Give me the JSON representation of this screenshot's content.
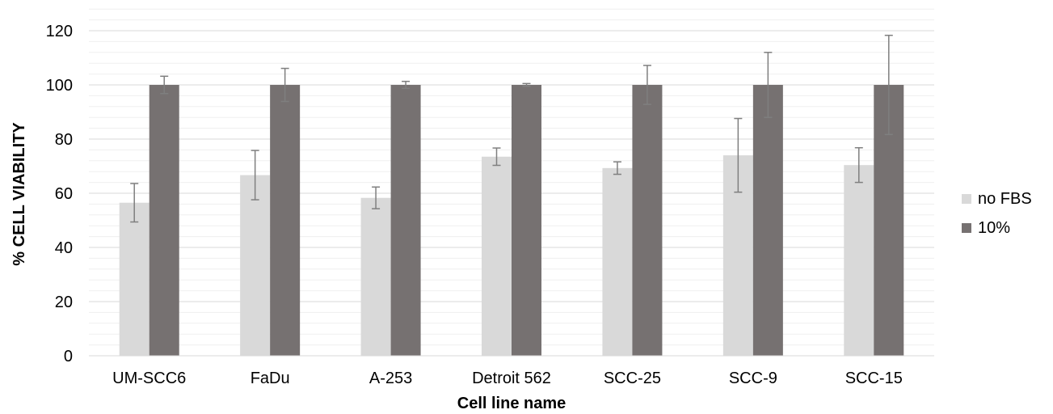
{
  "chart_data": {
    "type": "bar",
    "title": "",
    "xlabel": "Cell line name",
    "ylabel": "% CELL VIABILITY",
    "ylim": [
      0,
      120
    ],
    "yticks": [
      0,
      20,
      40,
      60,
      80,
      100,
      120
    ],
    "minor_gridlines": true,
    "legend_position": "right",
    "categories": [
      "UM-SCC6",
      "FaDu",
      "A-253",
      "Detroit 562",
      "SCC-25",
      "SCC-9",
      "SCC-15"
    ],
    "series": [
      {
        "name": "no FBS",
        "color": "#d9d9d9",
        "values": [
          56.5,
          66.7,
          58.3,
          73.5,
          69.3,
          74.0,
          70.4
        ],
        "error": [
          7.1,
          9.1,
          4.0,
          3.2,
          2.3,
          13.6,
          6.4
        ]
      },
      {
        "name": "10%",
        "color": "#767171",
        "values": [
          100,
          100,
          100,
          100,
          100,
          100,
          100
        ],
        "error": [
          3.2,
          6.1,
          1.3,
          0.5,
          7.2,
          12.0,
          18.3
        ]
      }
    ]
  }
}
